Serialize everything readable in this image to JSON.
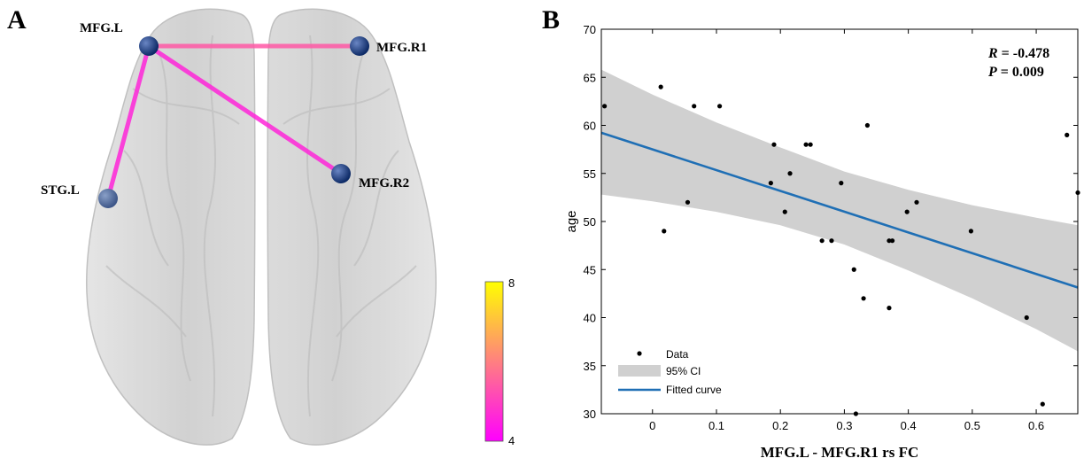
{
  "panels": {
    "a": {
      "letter": "A",
      "nodes": [
        {
          "id": "mfgl",
          "label": "MFG.L"
        },
        {
          "id": "mfgr1",
          "label": "MFG.R1"
        },
        {
          "id": "mfgr2",
          "label": "MFG.R2"
        },
        {
          "id": "stgl",
          "label": "STG.L"
        }
      ],
      "edges": [
        {
          "from": "mfgl",
          "to": "mfgr1",
          "weight": 5.4
        },
        {
          "from": "mfgl",
          "to": "mfgr2",
          "weight": 4.6
        },
        {
          "from": "mfgl",
          "to": "stgl",
          "weight": 4.6
        }
      ],
      "colorbar": {
        "min": 4,
        "max": 8,
        "min_label": "4",
        "max_label": "8",
        "colors": [
          "#ff00ff",
          "#ffff00"
        ]
      }
    },
    "b": {
      "letter": "B"
    }
  },
  "chart_data": {
    "type": "scatter",
    "xlabel": "MFG.L - MFG.R1 rs FC",
    "ylabel": "age",
    "xlim": [
      -0.08,
      0.665
    ],
    "ylim": [
      30,
      70
    ],
    "xticks": [
      0,
      0.1,
      0.2,
      0.3,
      0.4,
      0.5,
      0.6
    ],
    "xtick_labels": [
      "0",
      "0.1",
      "0.2",
      "0.3",
      "0.4",
      "0.5",
      "0.6"
    ],
    "yticks": [
      30,
      35,
      40,
      45,
      50,
      55,
      60,
      65,
      70
    ],
    "ytick_labels": [
      "30",
      "35",
      "40",
      "45",
      "50",
      "55",
      "60",
      "65",
      "70"
    ],
    "points": [
      {
        "x": -0.075,
        "y": 62
      },
      {
        "x": 0.013,
        "y": 64
      },
      {
        "x": 0.018,
        "y": 49
      },
      {
        "x": 0.055,
        "y": 52
      },
      {
        "x": 0.065,
        "y": 62
      },
      {
        "x": 0.105,
        "y": 62
      },
      {
        "x": 0.185,
        "y": 54
      },
      {
        "x": 0.19,
        "y": 58
      },
      {
        "x": 0.207,
        "y": 51
      },
      {
        "x": 0.215,
        "y": 55
      },
      {
        "x": 0.24,
        "y": 58
      },
      {
        "x": 0.247,
        "y": 58
      },
      {
        "x": 0.265,
        "y": 48
      },
      {
        "x": 0.28,
        "y": 48
      },
      {
        "x": 0.295,
        "y": 54
      },
      {
        "x": 0.315,
        "y": 45
      },
      {
        "x": 0.318,
        "y": 30
      },
      {
        "x": 0.33,
        "y": 42
      },
      {
        "x": 0.336,
        "y": 60
      },
      {
        "x": 0.37,
        "y": 41
      },
      {
        "x": 0.37,
        "y": 48
      },
      {
        "x": 0.375,
        "y": 48
      },
      {
        "x": 0.398,
        "y": 51
      },
      {
        "x": 0.413,
        "y": 52
      },
      {
        "x": 0.498,
        "y": 49
      },
      {
        "x": 0.585,
        "y": 40
      },
      {
        "x": 0.61,
        "y": 31
      },
      {
        "x": 0.648,
        "y": 59
      },
      {
        "x": 0.665,
        "y": 53
      }
    ],
    "fit": {
      "slope": -21.6,
      "intercept": 57.5
    },
    "ci": {
      "x": [
        -0.08,
        0.0,
        0.1,
        0.2,
        0.3,
        0.4,
        0.5,
        0.6,
        0.665
      ],
      "lower": [
        52.8,
        52.1,
        51.0,
        49.6,
        47.6,
        44.9,
        42.0,
        38.8,
        36.5
      ],
      "upper": [
        65.8,
        63.2,
        60.3,
        57.7,
        55.2,
        53.3,
        51.7,
        50.4,
        49.6
      ]
    },
    "annotations": {
      "r_label": "R",
      "r_value": " = -0.478",
      "p_label": "P",
      "p_value": " = 0.009"
    },
    "legend": {
      "position": "bottom-left",
      "items": [
        {
          "key": "data",
          "label": "Data"
        },
        {
          "key": "ci",
          "label": "95% CI"
        },
        {
          "key": "fit",
          "label": "Fitted curve"
        }
      ]
    },
    "colors": {
      "points": "#000000",
      "ci": "#d0d0d0",
      "fit": "#1f6fb5"
    }
  }
}
